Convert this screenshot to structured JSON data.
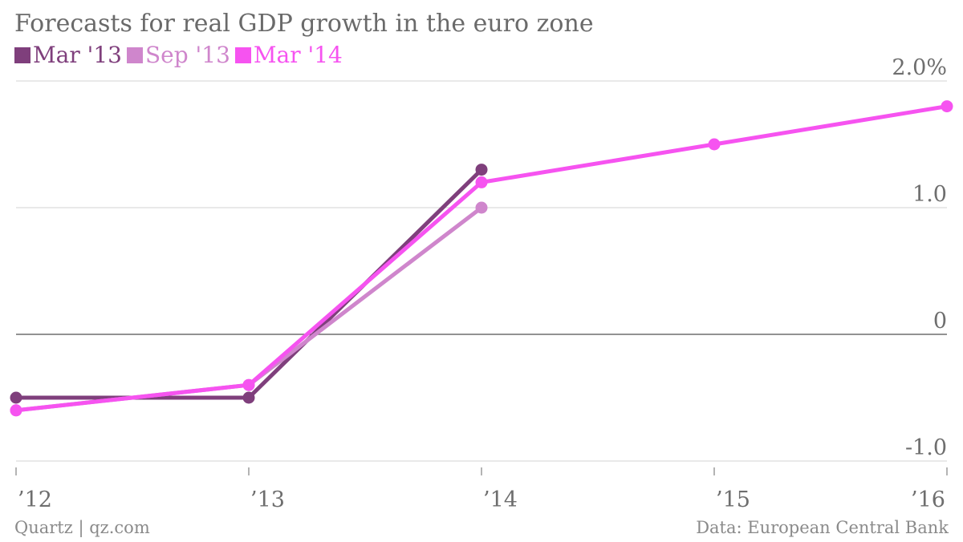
{
  "chart_data": {
    "type": "line",
    "title": "Forecasts for real GDP growth in the euro zone",
    "x": [
      "’12",
      "’13",
      "’14",
      "’15",
      "’16"
    ],
    "y_ticks": [
      {
        "value": 2.0,
        "label": "2.0%"
      },
      {
        "value": 1.0,
        "label": "1.0"
      },
      {
        "value": 0,
        "label": "0"
      },
      {
        "value": -1.0,
        "label": "-1.0"
      }
    ],
    "ylim": [
      -1.0,
      2.0
    ],
    "grid": true,
    "legend_position": "top-left",
    "series": [
      {
        "name": "Mar '13",
        "color": "#7f3f7c",
        "values": [
          -0.5,
          -0.5,
          1.3,
          null,
          null
        ]
      },
      {
        "name": "Sep '13",
        "color": "#cf86cc",
        "values": [
          -0.6,
          -0.4,
          1.0,
          null,
          null
        ]
      },
      {
        "name": "Mar '14",
        "color": "#f653f0",
        "values": [
          -0.6,
          -0.4,
          1.2,
          1.5,
          1.8
        ]
      }
    ]
  },
  "footer": {
    "source_left": "Quartz | qz.com",
    "source_right": "Data: European Central Bank"
  }
}
